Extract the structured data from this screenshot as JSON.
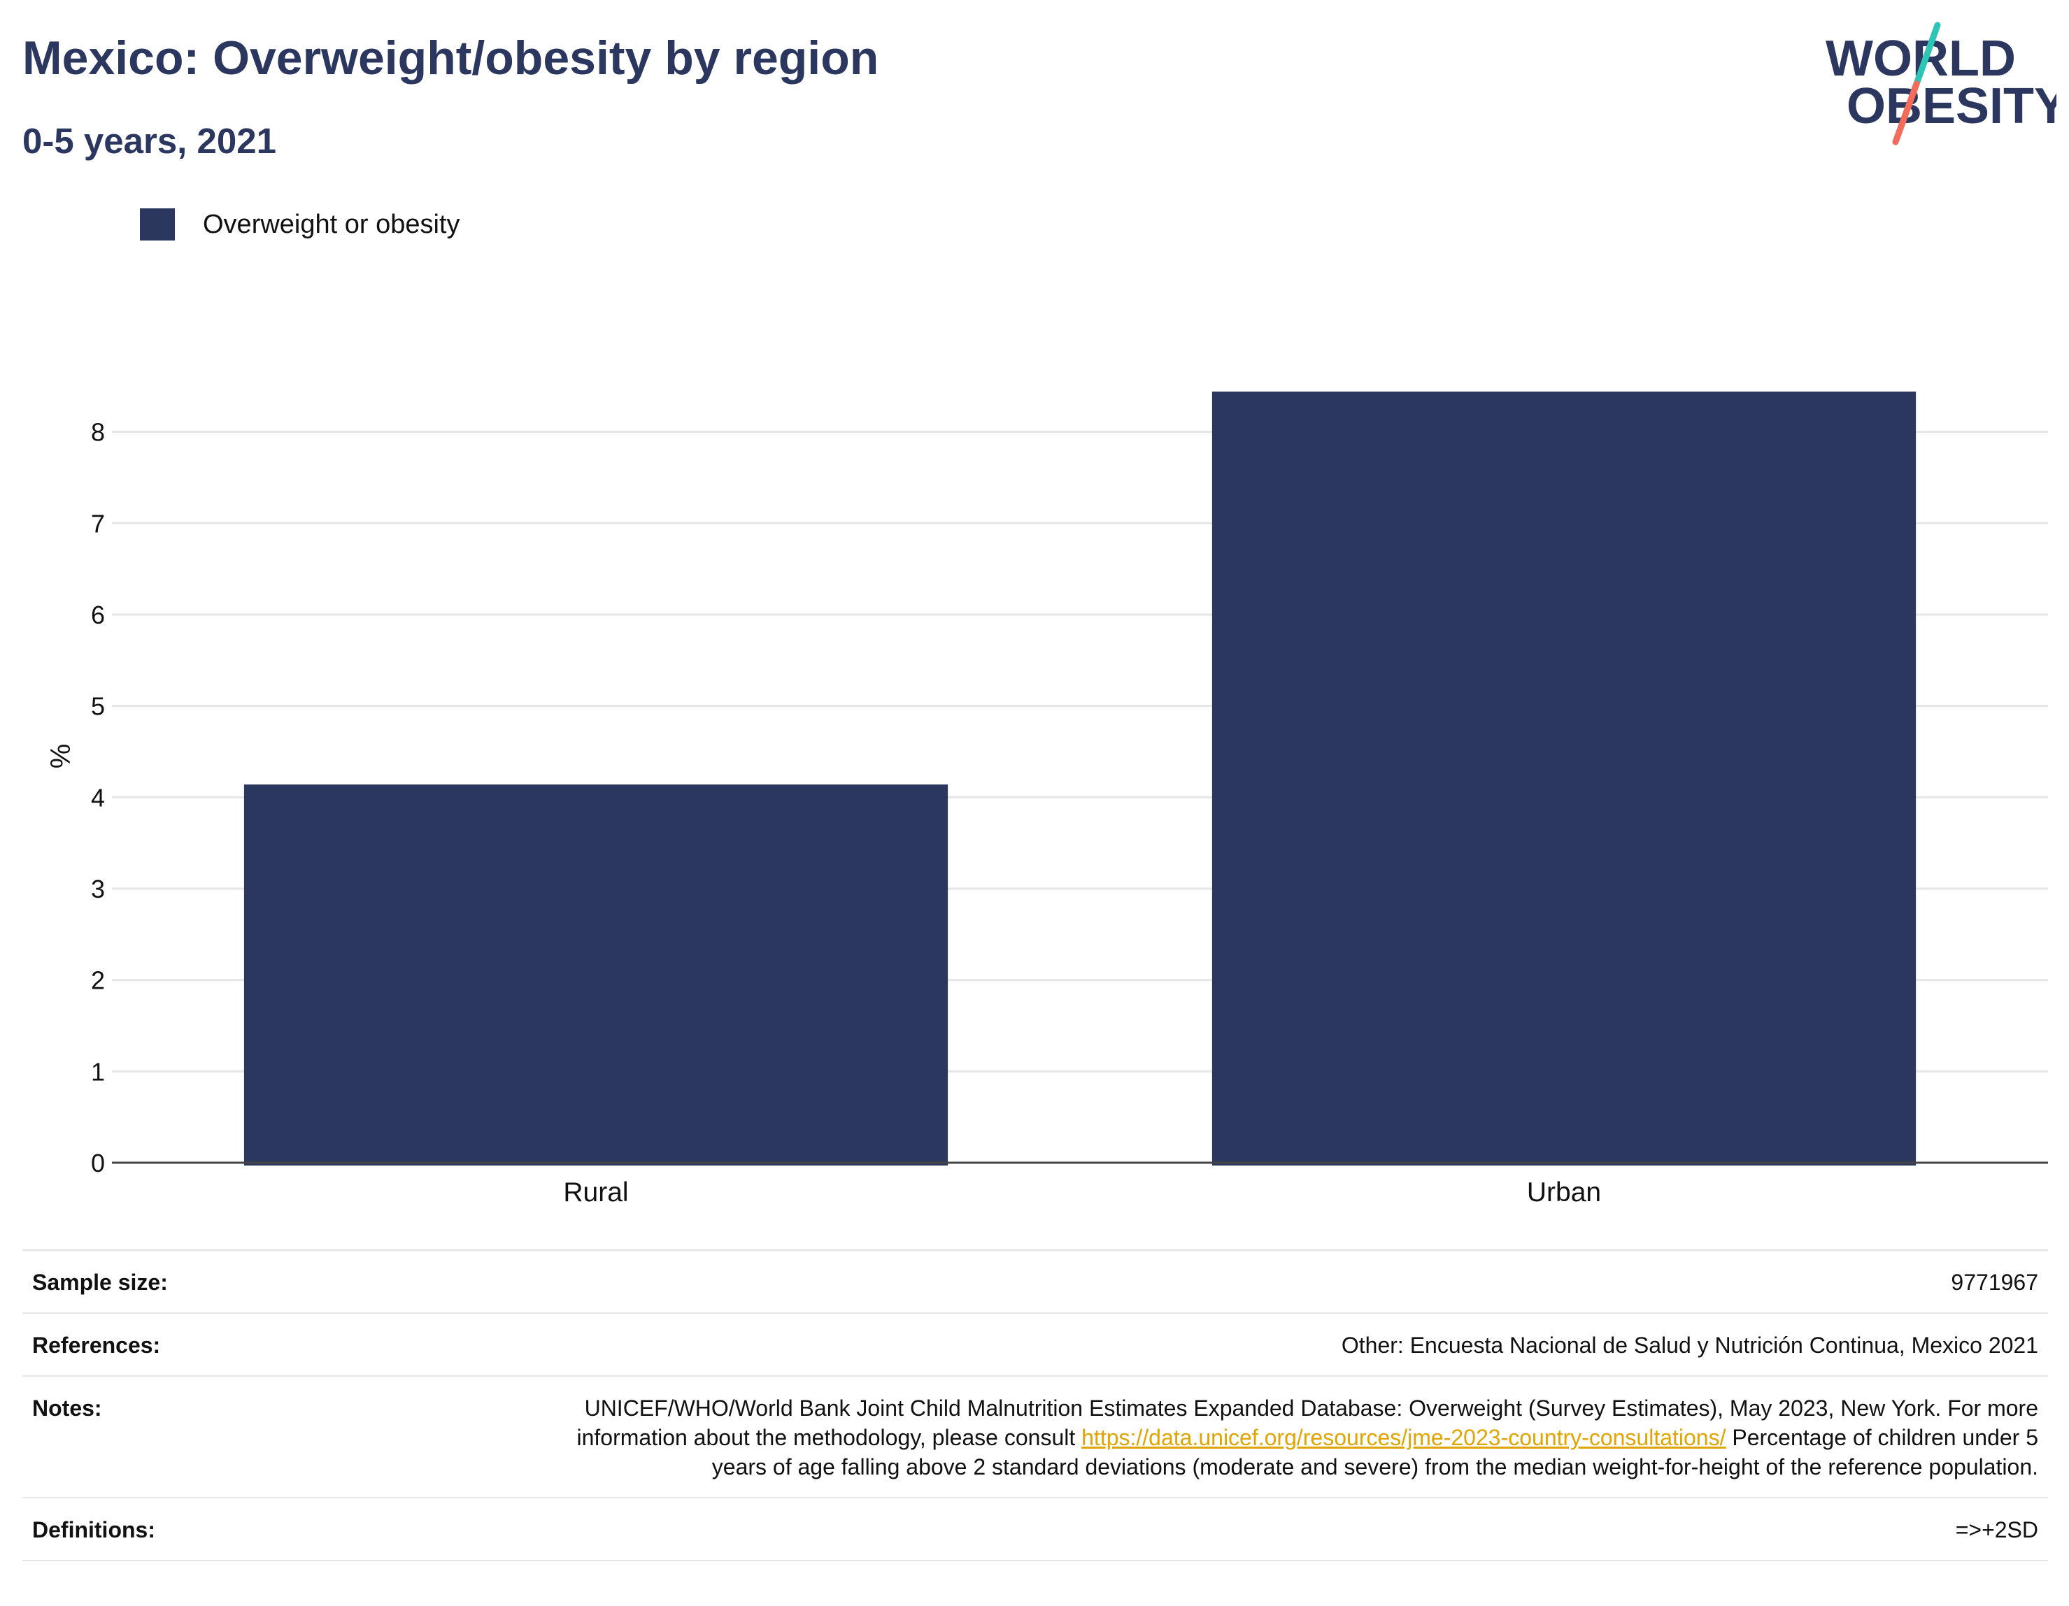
{
  "header": {
    "title": "Mexico: Overweight/obesity by region",
    "subtitle": "0-5 years, 2021"
  },
  "logo": {
    "line1": "WORLD",
    "line2": "OBESITY",
    "colors": {
      "text": "#2b375f",
      "slash_top": "#2ec4b6",
      "slash_bottom": "#f26b5b"
    }
  },
  "legend": {
    "items": [
      {
        "label": "Overweight or obesity",
        "color": "#2b375f"
      }
    ]
  },
  "chart_data": {
    "type": "bar",
    "categories": [
      "Rural",
      "Urban"
    ],
    "series": [
      {
        "name": "Overweight or obesity",
        "values": [
          4.14,
          8.44
        ],
        "color": "#2b375f"
      }
    ],
    "ylabel": "%",
    "xlabel": "",
    "ylim": [
      0,
      8.9
    ],
    "yticks": [
      0,
      1,
      2,
      3,
      4,
      5,
      6,
      7,
      8
    ],
    "grid": true
  },
  "meta": {
    "sample_size": {
      "label": "Sample size:",
      "value": "9771967"
    },
    "references": {
      "label": "References:",
      "value": "Other: Encuesta Nacional de Salud y Nutrición Continua, Mexico 2021"
    },
    "notes": {
      "label": "Notes:",
      "text1": "UNICEF/WHO/World Bank Joint Child Malnutrition Estimates Expanded Database: Overweight (Survey Estimates), May 2023, New York. For more information about the methodology, please consult ",
      "link": "https://data.unicef.org/resources/jme-2023-country-consultations/",
      "text2": " Percentage of children under 5 years of age falling above 2 standard deviations (moderate and severe) from the median weight-for-height of the reference population."
    },
    "definitions": {
      "label": "Definitions:",
      "value": "=>+2SD"
    }
  }
}
